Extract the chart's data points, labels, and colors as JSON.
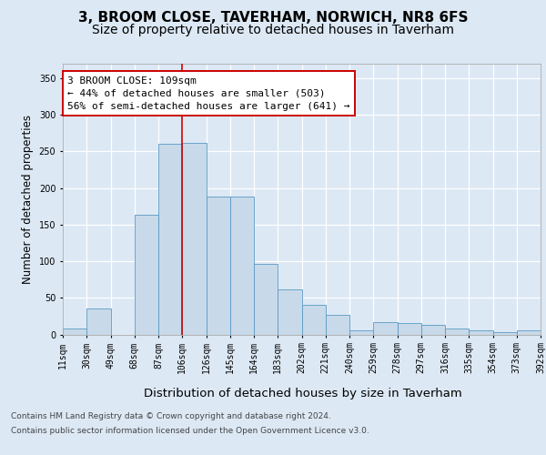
{
  "title": "3, BROOM CLOSE, TAVERHAM, NORWICH, NR8 6FS",
  "subtitle": "Size of property relative to detached houses in Taverham",
  "xlabel": "Distribution of detached houses by size in Taverham",
  "ylabel": "Number of detached properties",
  "categories": [
    "11sqm",
    "30sqm",
    "49sqm",
    "68sqm",
    "87sqm",
    "106sqm",
    "126sqm",
    "145sqm",
    "164sqm",
    "183sqm",
    "202sqm",
    "221sqm",
    "240sqm",
    "259sqm",
    "278sqm",
    "297sqm",
    "316sqm",
    "335sqm",
    "354sqm",
    "373sqm",
    "392sqm"
  ],
  "values": [
    8,
    35,
    0,
    163,
    260,
    262,
    188,
    188,
    97,
    62,
    40,
    27,
    5,
    17,
    15,
    13,
    8,
    5,
    3,
    5
  ],
  "bar_color": "#c8d9e9",
  "bar_edge_color": "#5a9ac5",
  "vline_color": "#cc0000",
  "vline_x": 5,
  "annotation_line1": "3 BROOM CLOSE: 109sqm",
  "annotation_line2": "← 44% of detached houses are smaller (503)",
  "annotation_line3": "56% of semi-detached houses are larger (641) →",
  "ylim": [
    0,
    370
  ],
  "yticks": [
    0,
    50,
    100,
    150,
    200,
    250,
    300,
    350
  ],
  "footer1": "Contains HM Land Registry data © Crown copyright and database right 2024.",
  "footer2": "Contains public sector information licensed under the Open Government Licence v3.0.",
  "bg_color": "#dce8f4",
  "title_fontsize": 11,
  "subtitle_fontsize": 10,
  "xlabel_fontsize": 9.5,
  "ylabel_fontsize": 8.5,
  "tick_fontsize": 7,
  "annot_fontsize": 8,
  "footer_fontsize": 6.5
}
